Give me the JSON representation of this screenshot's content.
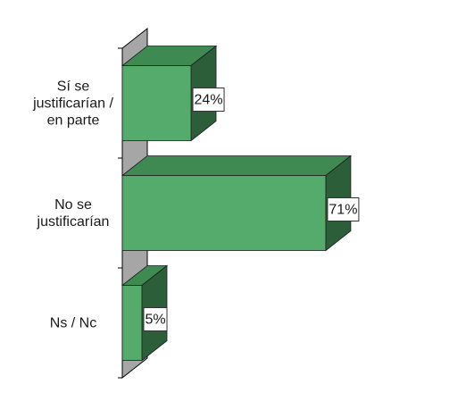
{
  "chart_data": {
    "type": "bar",
    "orientation": "horizontal",
    "three_d": true,
    "categories": [
      [
        "Sí se",
        "justificarían /",
        "en parte"
      ],
      [
        "No se",
        "justificarían"
      ],
      [
        "Ns / Nc"
      ]
    ],
    "values": [
      24,
      71,
      5
    ],
    "value_labels": [
      "24%",
      "71%",
      "5%"
    ],
    "xlim": [
      0,
      100
    ],
    "grid": false,
    "legend": "none",
    "colors": {
      "bar_front": "#55ab6c",
      "bar_top": "#3f8a52",
      "bar_side": "#2c5f39",
      "wall": "#a6a6a6",
      "axis": "#000000",
      "label_box": "#ffffff"
    }
  }
}
